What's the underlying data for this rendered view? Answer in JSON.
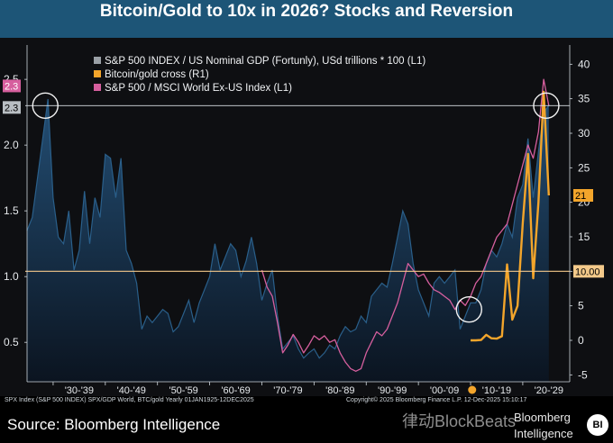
{
  "title": "Bitcoin/Gold to 10x in 2026? Stocks and Reversion",
  "footer": {
    "note": "SPX Index (S&P 500 INDEX) SPX/GDP World, BTC/gold Yearly 01JAN1925-12DEC2025",
    "copyright": "Copyright© 2025 Bloomberg Finance L.P.  12-Dec-2025 15:10:17"
  },
  "source": "Source: Bloomberg Intelligence",
  "watermark": "律动BlockBeats",
  "logo": {
    "line1": "Bloomberg",
    "line2": "Intelligence",
    "badge": "BI"
  },
  "colors": {
    "spx_gdp": "#9aa0a6",
    "btc_gold": "#f3a52b",
    "spx_msci": "#d65f9e",
    "area_top": "#234e74",
    "hline": "#f3c98a",
    "plot_bg": "#0e0f12"
  },
  "chart_data": {
    "type": "area",
    "title": "",
    "x_tick_labels": [
      "'30-'39",
      "'40-'49",
      "'50-'59",
      "'60-'69",
      "'70-'79",
      "'80-'89",
      "'90-'99",
      "'00-'09",
      "'10-'19",
      "'20-'29"
    ],
    "x_range": [
      1925,
      2029
    ],
    "left_axis": {
      "ticks": [
        0.5,
        1.0,
        1.5,
        2.0,
        2.5
      ],
      "ylim": [
        0.2,
        2.72
      ]
    },
    "right_axis": {
      "ticks": [
        -5,
        0,
        5,
        10,
        15,
        20,
        25,
        30,
        35,
        40
      ],
      "ylim": [
        -6,
        42
      ]
    },
    "grid": false,
    "legend": {
      "placement": "top-left",
      "entries": [
        "S&P 500 INDEX / US Nominal GDP (Fortunly), USd trillions * 100 (L1)",
        "Bitcoin/gold cross (R1)",
        "S&P 500 / MSCI World Ex-US Index (L1)"
      ]
    },
    "reference_lines": [
      {
        "axis": "left",
        "value": 2.3,
        "label": "2.3"
      },
      {
        "axis": "right",
        "value": 10.0,
        "label": "10.00"
      }
    ],
    "value_badges": [
      {
        "series": "S&P 500 / MSCI World Ex-US Index (L1)",
        "value": "2.3"
      },
      {
        "series": "S&P 500 INDEX / US Nominal GDP (Fortunly), USd trillions * 100 (L1)",
        "value": "2.3"
      },
      {
        "series": "Bitcoin/gold cross (R1)",
        "value": "21"
      },
      {
        "series": "reference",
        "value": "10.00"
      }
    ],
    "highlight_circles": [
      {
        "x": 1928.5,
        "y_left": 2.3
      },
      {
        "x": 2024.5,
        "y_left": 2.3
      },
      {
        "x": 2009.7,
        "y_left": 0.75
      }
    ],
    "series": [
      {
        "name": "S&P 500 INDEX / US Nominal GDP (Fortunly), USd trillions * 100 (L1)",
        "axis": "left",
        "style": "area",
        "points": [
          [
            1925,
            1.35
          ],
          [
            1926,
            1.45
          ],
          [
            1927,
            1.75
          ],
          [
            1928,
            2.05
          ],
          [
            1929,
            2.35
          ],
          [
            1930,
            1.6
          ],
          [
            1931,
            1.3
          ],
          [
            1932,
            1.25
          ],
          [
            1933,
            1.5
          ],
          [
            1934,
            1.05
          ],
          [
            1935,
            1.2
          ],
          [
            1936,
            1.65
          ],
          [
            1937,
            1.25
          ],
          [
            1938,
            1.6
          ],
          [
            1939,
            1.45
          ],
          [
            1940,
            1.93
          ],
          [
            1941,
            1.9
          ],
          [
            1942,
            1.6
          ],
          [
            1943,
            1.9
          ],
          [
            1944,
            1.2
          ],
          [
            1945,
            1.1
          ],
          [
            1946,
            0.95
          ],
          [
            1947,
            0.6
          ],
          [
            1948,
            0.7
          ],
          [
            1949,
            0.65
          ],
          [
            1950,
            0.7
          ],
          [
            1951,
            0.75
          ],
          [
            1952,
            0.72
          ],
          [
            1953,
            0.58
          ],
          [
            1954,
            0.62
          ],
          [
            1955,
            0.72
          ],
          [
            1956,
            0.82
          ],
          [
            1957,
            0.65
          ],
          [
            1958,
            0.8
          ],
          [
            1959,
            0.9
          ],
          [
            1960,
            1.0
          ],
          [
            1961,
            1.25
          ],
          [
            1962,
            1.05
          ],
          [
            1963,
            1.15
          ],
          [
            1964,
            1.25
          ],
          [
            1965,
            1.2
          ],
          [
            1966,
            1.0
          ],
          [
            1967,
            1.12
          ],
          [
            1968,
            1.3
          ],
          [
            1969,
            1.1
          ],
          [
            1970,
            0.82
          ],
          [
            1971,
            0.95
          ],
          [
            1972,
            1.05
          ],
          [
            1973,
            0.7
          ],
          [
            1974,
            0.45
          ],
          [
            1975,
            0.5
          ],
          [
            1976,
            0.55
          ],
          [
            1977,
            0.45
          ],
          [
            1978,
            0.38
          ],
          [
            1979,
            0.42
          ],
          [
            1980,
            0.45
          ],
          [
            1981,
            0.38
          ],
          [
            1982,
            0.42
          ],
          [
            1983,
            0.48
          ],
          [
            1984,
            0.45
          ],
          [
            1985,
            0.55
          ],
          [
            1986,
            0.62
          ],
          [
            1987,
            0.58
          ],
          [
            1988,
            0.6
          ],
          [
            1989,
            0.7
          ],
          [
            1990,
            0.65
          ],
          [
            1991,
            0.85
          ],
          [
            1992,
            0.9
          ],
          [
            1993,
            0.95
          ],
          [
            1994,
            0.92
          ],
          [
            1995,
            1.1
          ],
          [
            1996,
            1.3
          ],
          [
            1997,
            1.5
          ],
          [
            1998,
            1.4
          ],
          [
            1999,
            1.1
          ],
          [
            2000,
            0.9
          ],
          [
            2001,
            0.8
          ],
          [
            2002,
            0.7
          ],
          [
            2003,
            0.95
          ],
          [
            2004,
            1.0
          ],
          [
            2005,
            0.95
          ],
          [
            2006,
            1.0
          ],
          [
            2007,
            1.05
          ],
          [
            2008,
            0.6
          ],
          [
            2009,
            0.7
          ],
          [
            2010,
            0.8
          ],
          [
            2011,
            0.8
          ],
          [
            2012,
            0.9
          ],
          [
            2013,
            1.1
          ],
          [
            2014,
            1.2
          ],
          [
            2015,
            1.15
          ],
          [
            2016,
            1.25
          ],
          [
            2017,
            1.4
          ],
          [
            2018,
            1.3
          ],
          [
            2019,
            1.6
          ],
          [
            2020,
            1.7
          ],
          [
            2021,
            2.05
          ],
          [
            2022,
            1.6
          ],
          [
            2023,
            1.95
          ],
          [
            2024,
            2.25
          ],
          [
            2025,
            2.3
          ]
        ]
      },
      {
        "name": "S&P 500 / MSCI World Ex-US Index (L1)",
        "axis": "left",
        "style": "line",
        "points": [
          [
            1970,
            1.05
          ],
          [
            1971,
            0.92
          ],
          [
            1972,
            0.85
          ],
          [
            1973,
            0.65
          ],
          [
            1974,
            0.42
          ],
          [
            1975,
            0.48
          ],
          [
            1976,
            0.56
          ],
          [
            1977,
            0.5
          ],
          [
            1978,
            0.42
          ],
          [
            1979,
            0.48
          ],
          [
            1980,
            0.55
          ],
          [
            1981,
            0.52
          ],
          [
            1982,
            0.55
          ],
          [
            1983,
            0.5
          ],
          [
            1984,
            0.52
          ],
          [
            1985,
            0.42
          ],
          [
            1986,
            0.35
          ],
          [
            1987,
            0.3
          ],
          [
            1988,
            0.28
          ],
          [
            1989,
            0.3
          ],
          [
            1990,
            0.42
          ],
          [
            1991,
            0.5
          ],
          [
            1992,
            0.58
          ],
          [
            1993,
            0.55
          ],
          [
            1994,
            0.6
          ],
          [
            1995,
            0.7
          ],
          [
            1996,
            0.8
          ],
          [
            1997,
            0.95
          ],
          [
            1998,
            1.1
          ],
          [
            1999,
            1.05
          ],
          [
            2000,
            1.0
          ],
          [
            2001,
            1.02
          ],
          [
            2002,
            0.95
          ],
          [
            2003,
            0.9
          ],
          [
            2004,
            0.88
          ],
          [
            2005,
            0.85
          ],
          [
            2006,
            0.82
          ],
          [
            2007,
            0.75
          ],
          [
            2008,
            0.82
          ],
          [
            2009,
            0.78
          ],
          [
            2010,
            0.85
          ],
          [
            2011,
            0.95
          ],
          [
            2012,
            1.0
          ],
          [
            2013,
            1.1
          ],
          [
            2014,
            1.2
          ],
          [
            2015,
            1.3
          ],
          [
            2016,
            1.35
          ],
          [
            2017,
            1.4
          ],
          [
            2018,
            1.55
          ],
          [
            2019,
            1.7
          ],
          [
            2020,
            1.85
          ],
          [
            2021,
            2.0
          ],
          [
            2022,
            1.9
          ],
          [
            2023,
            2.1
          ],
          [
            2024,
            2.5
          ],
          [
            2025,
            2.3
          ]
        ]
      },
      {
        "name": "Bitcoin/gold cross (R1)",
        "axis": "right",
        "style": "line",
        "points": [
          [
            2010,
            0.0
          ],
          [
            2011,
            0.0
          ],
          [
            2012,
            0.05
          ],
          [
            2013,
            0.8
          ],
          [
            2014,
            0.3
          ],
          [
            2015,
            0.25
          ],
          [
            2016,
            0.6
          ],
          [
            2017,
            11.0
          ],
          [
            2018,
            3.0
          ],
          [
            2019,
            5.0
          ],
          [
            2020,
            17.0
          ],
          [
            2021,
            27.0
          ],
          [
            2022,
            9.0
          ],
          [
            2023,
            20.0
          ],
          [
            2024,
            36.0
          ],
          [
            2025,
            21.0
          ]
        ]
      }
    ]
  }
}
